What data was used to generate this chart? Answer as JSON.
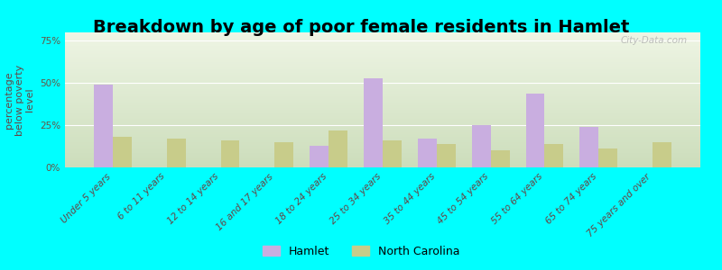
{
  "title": "Breakdown by age of poor female residents in Hamlet",
  "ylabel": "percentage\nbelow poverty\nlevel",
  "categories": [
    "Under 5 years",
    "6 to 11 years",
    "12 to 14 years",
    "16 and 17 years",
    "18 to 24 years",
    "25 to 34 years",
    "35 to 44 years",
    "45 to 54 years",
    "55 to 64 years",
    "65 to 74 years",
    "75 years and over"
  ],
  "hamlet_values": [
    49,
    0,
    0,
    0,
    13,
    53,
    17,
    25,
    44,
    24,
    0
  ],
  "nc_values": [
    18,
    17,
    16,
    15,
    22,
    16,
    14,
    10,
    14,
    11,
    15
  ],
  "hamlet_color": "#c9aee0",
  "nc_color": "#c8cc8a",
  "bg_color": "#00ffff",
  "yticks": [
    0,
    25,
    50,
    75
  ],
  "ytick_labels": [
    "0%",
    "25%",
    "50%",
    "75%"
  ],
  "ylim": [
    0,
    80
  ],
  "bar_width": 0.35,
  "title_fontsize": 14,
  "axis_label_fontsize": 8,
  "tick_fontsize": 7.5,
  "legend_labels": [
    "Hamlet",
    "North Carolina"
  ],
  "watermark": "City-Data.com"
}
